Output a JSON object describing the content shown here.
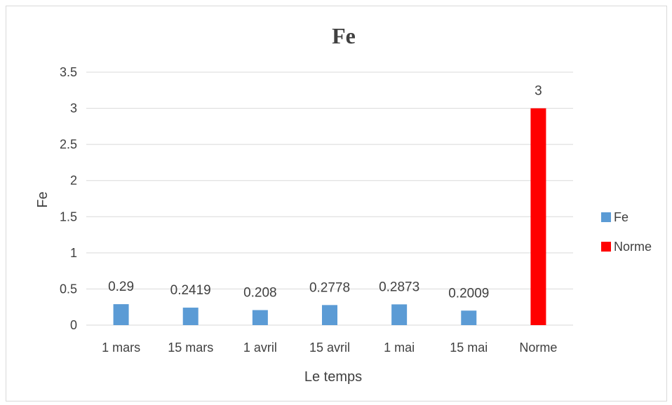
{
  "chart_data": {
    "type": "bar",
    "title": "Fe",
    "xlabel": "Le temps",
    "ylabel": "Fe",
    "ylim": [
      0,
      3.5
    ],
    "yticks": [
      "0",
      "0.5",
      "1",
      "1.5",
      "2",
      "2.5",
      "3",
      "3.5"
    ],
    "categories": [
      "1 mars",
      "15 mars",
      "1 avril",
      "15 avril",
      "1 mai",
      "15 mai",
      "Norme"
    ],
    "series": [
      {
        "name": "Fe",
        "color": "#5b9bd5",
        "values": [
          0.29,
          0.2419,
          0.208,
          0.2778,
          0.2873,
          0.2009,
          null
        ],
        "labels": [
          "0.29",
          "0.2419",
          "0.208",
          "0.2778",
          "0.2873",
          "0.2009",
          ""
        ]
      },
      {
        "name": "Norme",
        "color": "#ff0000",
        "values": [
          null,
          null,
          null,
          null,
          null,
          null,
          3
        ],
        "labels": [
          "",
          "",
          "",
          "",
          "",
          "",
          "3"
        ]
      }
    ],
    "grid": true,
    "legend_position": "right"
  }
}
